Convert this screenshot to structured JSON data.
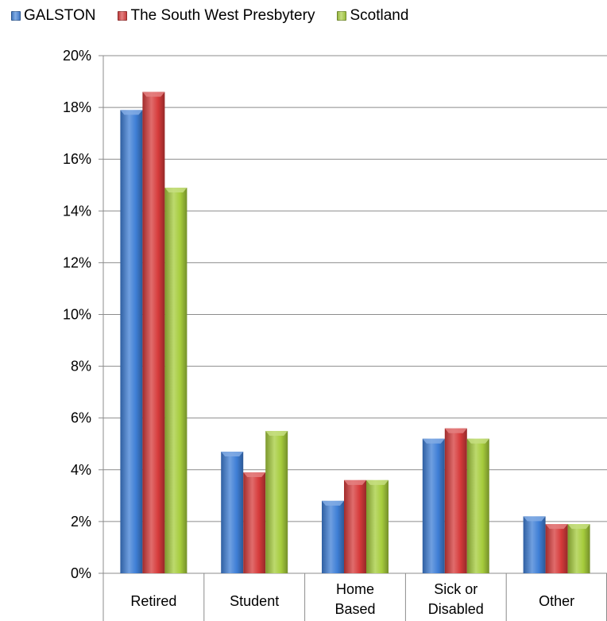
{
  "legend": [
    {
      "name": "GALSTON",
      "color": "#3f7fd6"
    },
    {
      "name": "The South West Presbytery",
      "color": "#d63b3b"
    },
    {
      "name": "Scotland",
      "color": "#a6cc3c"
    }
  ],
  "chart_data": {
    "type": "bar",
    "categories": [
      [
        "Retired"
      ],
      [
        "Student"
      ],
      [
        "Home",
        "Based"
      ],
      [
        "Sick or",
        "Disabled"
      ],
      [
        "Other"
      ]
    ],
    "series": [
      {
        "name": "GALSTON",
        "values": [
          17.9,
          4.7,
          2.8,
          5.2,
          2.2
        ]
      },
      {
        "name": "The South West Presbytery",
        "values": [
          18.6,
          3.9,
          3.6,
          5.6,
          1.9
        ]
      },
      {
        "name": "Scotland",
        "values": [
          14.9,
          5.5,
          3.6,
          5.2,
          1.9
        ]
      }
    ],
    "yticks": [
      "0%",
      "2%",
      "4%",
      "6%",
      "8%",
      "10%",
      "12%",
      "14%",
      "16%",
      "18%",
      "20%"
    ],
    "ylim": [
      0,
      20
    ],
    "ytick_step": 2,
    "grid": true,
    "legend_position": "top-left"
  }
}
